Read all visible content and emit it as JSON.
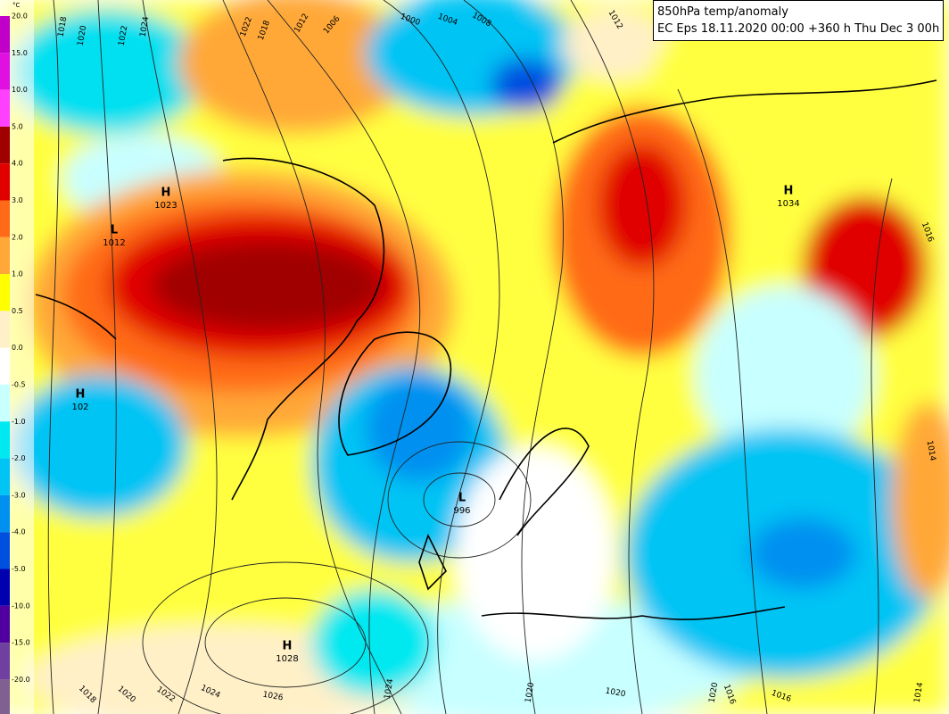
{
  "header": {
    "title": "850hPa temp/anomaly",
    "subtitle": "EC Eps 18.11.2020 00:00 +360 h Thu Dec 3 00h"
  },
  "legend": {
    "unit": "°C",
    "entries": [
      {
        "label": "20.0",
        "color": "#c000c8"
      },
      {
        "label": "15.0",
        "color": "#e010e0"
      },
      {
        "label": "10.0",
        "color": "#ff40ff"
      },
      {
        "label": "5.0",
        "color": "#a00000"
      },
      {
        "label": "4.0",
        "color": "#e00000"
      },
      {
        "label": "3.0",
        "color": "#ff6a18"
      },
      {
        "label": "2.0",
        "color": "#ffa838"
      },
      {
        "label": "1.0",
        "color": "#ffff00"
      },
      {
        "label": "0.5",
        "color": "#fff0c8"
      },
      {
        "label": "0.0",
        "color": "#ffffff"
      },
      {
        "label": "-0.5",
        "color": "#c8ffff"
      },
      {
        "label": "-1.0",
        "color": "#00e8f0"
      },
      {
        "label": "-2.0",
        "color": "#00c4f4"
      },
      {
        "label": "-3.0",
        "color": "#0090f0"
      },
      {
        "label": "-4.0",
        "color": "#0050e0"
      },
      {
        "label": "-5.0",
        "color": "#0000b0"
      },
      {
        "label": "-10.0",
        "color": "#5000a0"
      },
      {
        "label": "-15.0",
        "color": "#7040a0"
      },
      {
        "label": "-20.0",
        "color": "#806090"
      }
    ]
  },
  "pressure_centers": [
    {
      "symbol": "H",
      "value": "1023"
    },
    {
      "symbol": "L",
      "value": "1012"
    },
    {
      "symbol": "H",
      "value": "102"
    },
    {
      "symbol": "H",
      "value": "1034"
    },
    {
      "symbol": "L",
      "value": "996"
    },
    {
      "symbol": "H",
      "value": "1028"
    }
  ],
  "isobar_labels": [
    "1018",
    "1020",
    "1022",
    "1024",
    "1022",
    "1018",
    "1012",
    "1006",
    "1000",
    "1004",
    "1008",
    "1012",
    "1016",
    "1018",
    "1020",
    "1022",
    "1024",
    "1026",
    "1024",
    "1020",
    "1020",
    "1016",
    "1016",
    "1014",
    "1014",
    "1020"
  ]
}
